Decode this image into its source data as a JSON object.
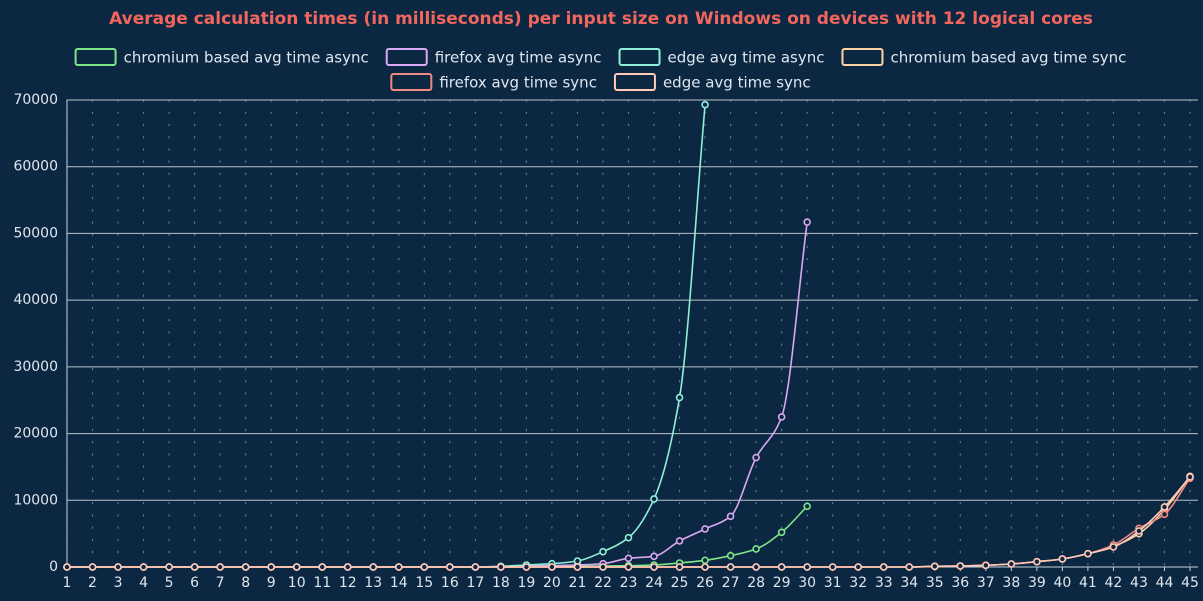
{
  "chart_data": {
    "type": "line",
    "title": "Average calculation times (in milliseconds) per input size on Windows on devices with 12 logical cores",
    "x": [
      1,
      2,
      3,
      4,
      5,
      6,
      7,
      8,
      9,
      10,
      11,
      12,
      13,
      14,
      15,
      16,
      17,
      18,
      19,
      20,
      21,
      22,
      23,
      24,
      25,
      26,
      27,
      28,
      29,
      30,
      31,
      32,
      33,
      34,
      35,
      36,
      37,
      38,
      39,
      40,
      41,
      42,
      43,
      44,
      45
    ],
    "xlim": [
      1,
      45
    ],
    "ylim": [
      0,
      70000
    ],
    "yticks": [
      0,
      10000,
      20000,
      30000,
      40000,
      50000,
      60000,
      70000
    ],
    "grid": true,
    "series": [
      {
        "name": "chromium based avg time async",
        "color": "#7ee68a",
        "values": [
          0,
          0,
          0,
          0,
          0,
          0,
          0,
          0,
          0,
          0,
          0,
          0,
          0,
          0,
          0,
          0,
          0,
          0,
          50,
          80,
          120,
          150,
          200,
          300,
          600,
          1000,
          1700,
          2700,
          5200,
          9100,
          null,
          null,
          null,
          null,
          null,
          null,
          null,
          null,
          null,
          null,
          null,
          null,
          null,
          null,
          null
        ]
      },
      {
        "name": "firefox avg time async",
        "color": "#d9a8f2",
        "values": [
          0,
          0,
          0,
          0,
          0,
          0,
          0,
          0,
          0,
          0,
          0,
          0,
          0,
          0,
          0,
          0,
          0,
          0,
          150,
          200,
          300,
          500,
          1300,
          1600,
          3900,
          5700,
          7600,
          16400,
          22500,
          51700,
          null,
          null,
          null,
          null,
          null,
          null,
          null,
          null,
          null,
          null,
          null,
          null,
          null,
          null,
          null
        ]
      },
      {
        "name": "edge avg time async",
        "color": "#8ff0d8",
        "values": [
          0,
          0,
          0,
          0,
          0,
          0,
          0,
          0,
          0,
          0,
          0,
          0,
          0,
          0,
          0,
          0,
          0,
          100,
          300,
          500,
          900,
          2300,
          4400,
          10200,
          25400,
          69300,
          null,
          null,
          null,
          null,
          null,
          null,
          null,
          null,
          null,
          null,
          null,
          null,
          null,
          null,
          null,
          null,
          null,
          null,
          null
        ]
      },
      {
        "name": "chromium based avg time sync",
        "color": "#ffd3a3",
        "values": [
          0,
          0,
          0,
          0,
          0,
          0,
          0,
          0,
          0,
          0,
          0,
          0,
          0,
          0,
          0,
          0,
          0,
          0,
          0,
          0,
          0,
          0,
          0,
          0,
          0,
          0,
          0,
          0,
          0,
          0,
          0,
          0,
          0,
          0,
          100,
          150,
          250,
          450,
          800,
          1200,
          2000,
          3100,
          5000,
          8600,
          13600
        ]
      },
      {
        "name": "firefox avg time sync",
        "color": "#f08a80",
        "values": [
          0,
          0,
          0,
          0,
          0,
          0,
          0,
          0,
          0,
          0,
          0,
          0,
          0,
          0,
          0,
          0,
          0,
          0,
          0,
          0,
          0,
          0,
          0,
          0,
          0,
          0,
          0,
          0,
          0,
          0,
          0,
          0,
          0,
          0,
          100,
          150,
          250,
          450,
          800,
          1200,
          2000,
          3300,
          5800,
          7900,
          13300
        ]
      },
      {
        "name": "edge avg time sync",
        "color": "#ffc9b8",
        "values": [
          0,
          0,
          0,
          0,
          0,
          0,
          0,
          0,
          0,
          0,
          0,
          0,
          0,
          0,
          0,
          0,
          0,
          0,
          0,
          0,
          0,
          0,
          0,
          0,
          0,
          0,
          0,
          0,
          0,
          0,
          0,
          0,
          0,
          0,
          100,
          150,
          250,
          450,
          800,
          1200,
          2000,
          3000,
          5400,
          9000,
          13500
        ]
      }
    ]
  }
}
